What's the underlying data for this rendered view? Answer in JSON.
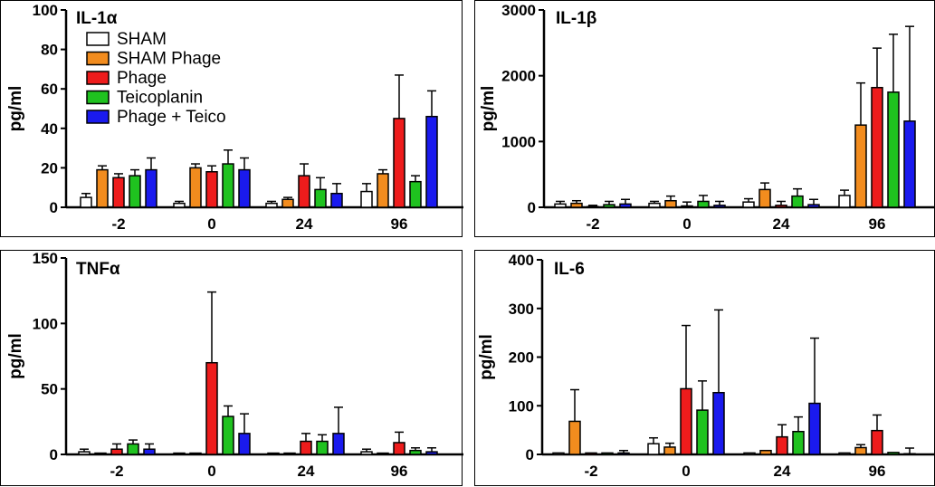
{
  "colors": {
    "SHAM": "#ffffff",
    "SHAM Phage": "#f28c1e",
    "Phage": "#ee1c1c",
    "Teicoplanin": "#1fc21f",
    "Phage + Teico": "#1a1aee"
  },
  "legend": [
    "SHAM",
    "SHAM Phage",
    "Phage",
    "Teicoplanin",
    "Phage + Teico"
  ],
  "chart_data": [
    {
      "type": "bar",
      "title": "IL-1α",
      "ylabel": "pg/ml",
      "ylim": [
        0,
        100
      ],
      "yticks": [
        "0",
        "20",
        "40",
        "60",
        "80",
        "100"
      ],
      "categories": [
        "-2",
        "0",
        "24",
        "96"
      ],
      "series": [
        {
          "name": "SHAM",
          "values": [
            5,
            2,
            2,
            8
          ],
          "errors": [
            2,
            1,
            1,
            4
          ]
        },
        {
          "name": "SHAM Phage",
          "values": [
            19,
            20,
            4,
            17
          ],
          "errors": [
            2,
            2,
            1,
            2
          ]
        },
        {
          "name": "Phage",
          "values": [
            15,
            18,
            16,
            45
          ],
          "errors": [
            2,
            3,
            6,
            22
          ]
        },
        {
          "name": "Teicoplanin",
          "values": [
            16,
            22,
            9,
            13
          ],
          "errors": [
            3,
            7,
            6,
            3
          ]
        },
        {
          "name": "Phage + Teico",
          "values": [
            19,
            19,
            7,
            46
          ],
          "errors": [
            6,
            6,
            5,
            13
          ]
        }
      ]
    },
    {
      "type": "bar",
      "title": "IL-1β",
      "ylabel": "pg/ml",
      "ylim": [
        0,
        3000
      ],
      "yticks": [
        "0",
        "1000",
        "2000",
        "3000"
      ],
      "categories": [
        "-2",
        "0",
        "24",
        "96"
      ],
      "series": [
        {
          "name": "SHAM",
          "values": [
            50,
            60,
            80,
            180
          ],
          "errors": [
            40,
            30,
            50,
            80
          ]
        },
        {
          "name": "SHAM Phage",
          "values": [
            60,
            100,
            270,
            1250
          ],
          "errors": [
            40,
            70,
            100,
            640
          ]
        },
        {
          "name": "Phage",
          "values": [
            10,
            20,
            30,
            1820
          ],
          "errors": [
            20,
            60,
            60,
            600
          ]
        },
        {
          "name": "Teicoplanin",
          "values": [
            40,
            90,
            170,
            1750
          ],
          "errors": [
            50,
            90,
            110,
            880
          ]
        },
        {
          "name": "Phage + Teico",
          "values": [
            50,
            30,
            40,
            1310
          ],
          "errors": [
            70,
            60,
            80,
            1440
          ]
        }
      ]
    },
    {
      "type": "bar",
      "title": "TNFα",
      "ylabel": "pg/ml",
      "ylim": [
        0,
        150
      ],
      "yticks": [
        "0",
        "50",
        "100",
        "150"
      ],
      "categories": [
        "-2",
        "0",
        "24",
        "96"
      ],
      "series": [
        {
          "name": "SHAM",
          "values": [
            2,
            1,
            1,
            2
          ],
          "errors": [
            2,
            0,
            0,
            2
          ]
        },
        {
          "name": "SHAM Phage",
          "values": [
            1,
            1,
            1,
            1
          ],
          "errors": [
            0,
            0,
            0,
            0
          ]
        },
        {
          "name": "Phage",
          "values": [
            4,
            70,
            10,
            9
          ],
          "errors": [
            4,
            54,
            6,
            8
          ]
        },
        {
          "name": "Teicoplanin",
          "values": [
            8,
            29,
            10,
            3
          ],
          "errors": [
            3,
            8,
            5,
            2
          ]
        },
        {
          "name": "Phage + Teico",
          "values": [
            4,
            16,
            16,
            2
          ],
          "errors": [
            4,
            15,
            20,
            3
          ]
        }
      ]
    },
    {
      "type": "bar",
      "title": "IL-6",
      "ylabel": "pg/ml",
      "ylim": [
        0,
        400
      ],
      "yticks": [
        "0",
        "100",
        "200",
        "300",
        "400"
      ],
      "categories": [
        "-2",
        "0",
        "24",
        "96"
      ],
      "series": [
        {
          "name": "SHAM",
          "values": [
            3,
            22,
            3,
            3
          ],
          "errors": [
            0,
            12,
            0,
            0
          ]
        },
        {
          "name": "SHAM Phage",
          "values": [
            68,
            15,
            8,
            14
          ],
          "errors": [
            65,
            8,
            0,
            6
          ]
        },
        {
          "name": "Phage",
          "values": [
            3,
            135,
            36,
            49
          ],
          "errors": [
            0,
            130,
            25,
            32
          ]
        },
        {
          "name": "Teicoplanin",
          "values": [
            3,
            91,
            47,
            4
          ],
          "errors": [
            0,
            60,
            30,
            0
          ]
        },
        {
          "name": "Phage + Teico",
          "values": [
            3,
            127,
            105,
            1
          ],
          "errors": [
            5,
            170,
            134,
            12
          ]
        }
      ]
    }
  ]
}
